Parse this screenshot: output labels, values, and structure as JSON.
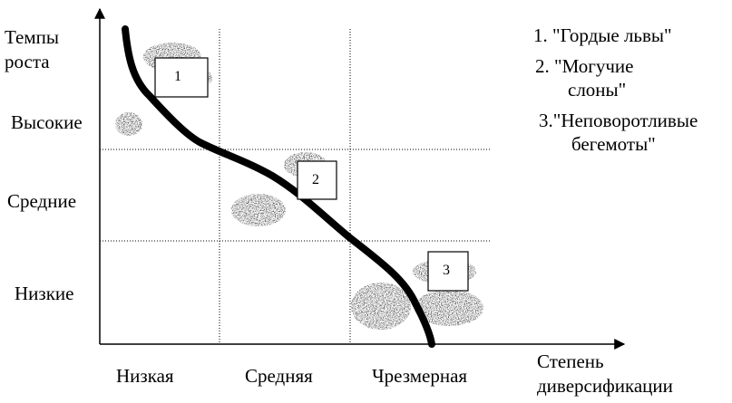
{
  "y_axis_title": [
    "Темпы",
    "роста"
  ],
  "x_axis_title": [
    "Степень",
    "диверсификации"
  ],
  "y_levels": [
    "Высокие",
    "Средние",
    "Низкие"
  ],
  "x_levels": [
    "Низкая",
    "Средняя",
    "Чрезмерная"
  ],
  "boxes": [
    "1",
    "2",
    "3"
  ],
  "legend": [
    [
      "1. \"Гордые львы\""
    ],
    [
      "2. \"Могучие",
      "слоны\""
    ],
    [
      "3.\"Неповоротливые",
      "бегемоты\""
    ]
  ]
}
